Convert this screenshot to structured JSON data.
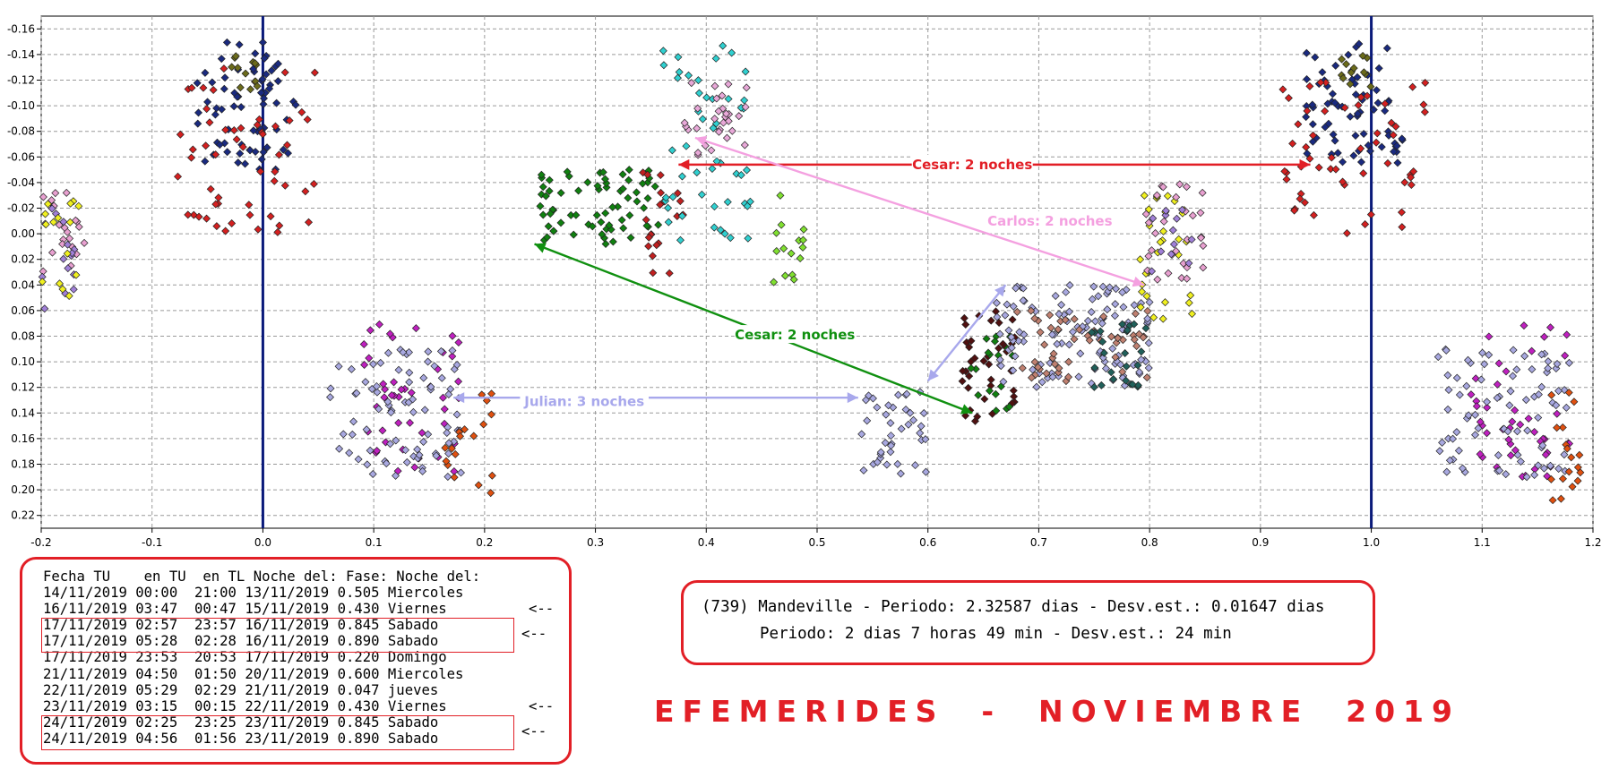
{
  "chart_data": {
    "type": "scatter",
    "xlim": [
      -0.2,
      1.2
    ],
    "ylim": [
      0.23,
      -0.17
    ],
    "y_axis_inverted": true,
    "grid": true,
    "x_ticks": [
      "-0.2",
      "-0.1",
      "0.0",
      "0.1",
      "0.2",
      "0.3",
      "0.4",
      "0.5",
      "0.6",
      "0.7",
      "0.8",
      "0.9",
      "1.0",
      "1.1",
      "1.2"
    ],
    "x_tick_values": [
      -0.2,
      -0.1,
      0.0,
      0.1,
      0.2,
      0.3,
      0.4,
      0.5,
      0.6,
      0.7,
      0.8,
      0.9,
      1.0,
      1.1,
      1.2
    ],
    "y_ticks": [
      "-0.16",
      "-0.14",
      "-0.12",
      "-0.10",
      "-0.08",
      "-0.06",
      "-0.04",
      "-0.02",
      "0.00",
      "0.02",
      "0.04",
      "0.06",
      "0.08",
      "0.10",
      "0.12",
      "0.14",
      "0.16",
      "0.18",
      "0.20",
      "0.22"
    ],
    "y_tick_values": [
      -0.16,
      -0.14,
      -0.12,
      -0.1,
      -0.08,
      -0.06,
      -0.04,
      -0.02,
      0.0,
      0.02,
      0.04,
      0.06,
      0.08,
      0.1,
      0.12,
      0.14,
      0.16,
      0.18,
      0.2,
      0.22
    ],
    "vertical_lines": [
      {
        "x": 0.0,
        "color": "#0a1a7a"
      },
      {
        "x": 1.0,
        "color": "#0a1a7a"
      }
    ],
    "clusters": [
      {
        "color": "#1a2a80",
        "x": [
          -0.06,
          0.03
        ],
        "y": [
          -0.15,
          -0.05
        ],
        "n": 70
      },
      {
        "color": "#d42020",
        "x": [
          -0.08,
          0.05
        ],
        "y": [
          -0.13,
          0.0
        ],
        "n": 55
      },
      {
        "color": "#6b6b1a",
        "x": [
          -0.03,
          0.0
        ],
        "y": [
          -0.14,
          -0.11
        ],
        "n": 12
      },
      {
        "color": "#e8a0d0",
        "x": [
          -0.2,
          -0.16
        ],
        "y": [
          -0.04,
          0.03
        ],
        "n": 20
      },
      {
        "color": "#a080d8",
        "x": [
          -0.2,
          -0.17
        ],
        "y": [
          -0.02,
          0.06
        ],
        "n": 15
      },
      {
        "color": "#f0f020",
        "x": [
          -0.2,
          -0.16
        ],
        "y": [
          -0.03,
          0.05
        ],
        "n": 15
      },
      {
        "color": "#c020c0",
        "x": [
          0.09,
          0.18
        ],
        "y": [
          0.07,
          0.19
        ],
        "n": 45
      },
      {
        "color": "#a8a8e0",
        "x": [
          0.06,
          0.18
        ],
        "y": [
          0.09,
          0.19
        ],
        "n": 80
      },
      {
        "color": "#e05010",
        "x": [
          0.16,
          0.21
        ],
        "y": [
          0.12,
          0.21
        ],
        "n": 18
      },
      {
        "color": "#108010",
        "x": [
          0.25,
          0.36
        ],
        "y": [
          -0.05,
          0.01
        ],
        "n": 70
      },
      {
        "color": "#c02020",
        "x": [
          0.34,
          0.38
        ],
        "y": [
          -0.05,
          0.04
        ],
        "n": 20
      },
      {
        "color": "#30d0d0",
        "x": [
          0.36,
          0.44
        ],
        "y": [
          -0.15,
          0.01
        ],
        "n": 50
      },
      {
        "color": "#e8a8d8",
        "x": [
          0.38,
          0.44
        ],
        "y": [
          -0.12,
          -0.06
        ],
        "n": 30
      },
      {
        "color": "#80e030",
        "x": [
          0.46,
          0.49
        ],
        "y": [
          -0.03,
          0.05
        ],
        "n": 15
      },
      {
        "color": "#a8a8e0",
        "x": [
          0.54,
          0.6
        ],
        "y": [
          0.12,
          0.19
        ],
        "n": 40
      },
      {
        "color": "#501010",
        "x": [
          0.63,
          0.68
        ],
        "y": [
          0.06,
          0.15
        ],
        "n": 40
      },
      {
        "color": "#108010",
        "x": [
          0.63,
          0.68
        ],
        "y": [
          0.08,
          0.14
        ],
        "n": 18
      },
      {
        "color": "#a8a8e0",
        "x": [
          0.66,
          0.8
        ],
        "y": [
          0.04,
          0.12
        ],
        "n": 120
      },
      {
        "color": "#c08070",
        "x": [
          0.68,
          0.8
        ],
        "y": [
          0.06,
          0.12
        ],
        "n": 50
      },
      {
        "color": "#20605a",
        "x": [
          0.74,
          0.8
        ],
        "y": [
          0.07,
          0.12
        ],
        "n": 25
      },
      {
        "color": "#f0f020",
        "x": [
          0.79,
          0.84
        ],
        "y": [
          -0.03,
          0.07
        ],
        "n": 30
      },
      {
        "color": "#e8a0d0",
        "x": [
          0.79,
          0.85
        ],
        "y": [
          -0.04,
          0.04
        ],
        "n": 30
      },
      {
        "color": "#a080d8",
        "x": [
          0.8,
          0.84
        ],
        "y": [
          -0.02,
          0.03
        ],
        "n": 12
      },
      {
        "color": "#1a2a80",
        "x": [
          0.94,
          1.03
        ],
        "y": [
          -0.15,
          -0.05
        ],
        "n": 70
      },
      {
        "color": "#d42020",
        "x": [
          0.92,
          1.05
        ],
        "y": [
          -0.13,
          0.0
        ],
        "n": 55
      },
      {
        "color": "#6b6b1a",
        "x": [
          0.97,
          1.0
        ],
        "y": [
          -0.14,
          -0.11
        ],
        "n": 12
      },
      {
        "color": "#c020c0",
        "x": [
          1.09,
          1.18
        ],
        "y": [
          0.07,
          0.19
        ],
        "n": 45
      },
      {
        "color": "#a8a8e0",
        "x": [
          1.06,
          1.18
        ],
        "y": [
          0.09,
          0.19
        ],
        "n": 80
      },
      {
        "color": "#e05010",
        "x": [
          1.16,
          1.19
        ],
        "y": [
          0.12,
          0.21
        ],
        "n": 18
      }
    ],
    "annotations": [
      {
        "text": "Cesar: 2 noches",
        "color": "#e21f26",
        "x": 0.64,
        "y": -0.054
      },
      {
        "text": "Carlos: 2 noches",
        "color": "#f4a0e0",
        "x": 0.71,
        "y": -0.01
      },
      {
        "text": "Cesar: 2 noches",
        "color": "#109010",
        "x": 0.48,
        "y": 0.079
      },
      {
        "text": "Julian: 3 noches",
        "color": "#a8a8ec",
        "x": 0.29,
        "y": 0.131
      }
    ],
    "arrows": [
      {
        "color": "#e21f26",
        "from": [
          0.375,
          -0.054
        ],
        "to": [
          0.945,
          -0.054
        ],
        "both": true
      },
      {
        "color": "#f4a0e0",
        "from": [
          0.39,
          -0.075
        ],
        "to": [
          0.795,
          0.04
        ],
        "both": true
      },
      {
        "color": "#109010",
        "from": [
          0.245,
          0.008
        ],
        "to": [
          0.64,
          0.14
        ],
        "both": true
      },
      {
        "color": "#a8a8ec",
        "from": [
          0.172,
          0.128
        ],
        "to": [
          0.537,
          0.128
        ],
        "both": true
      },
      {
        "color": "#a8a8ec",
        "from": [
          0.6,
          0.115
        ],
        "to": [
          0.67,
          0.04
        ],
        "both": true
      }
    ]
  },
  "table": {
    "header": "Fecha TU    en TU  en TL Noche del: Fase: Noche del:",
    "rows": [
      "14/11/2019 00:00  21:00 13/11/2019 0.505 Miercoles",
      "16/11/2019 03:47  00:47 15/11/2019 0.430 Viernes",
      "17/11/2019 02:57  23:57 16/11/2019 0.845 Sabado",
      "17/11/2019 05:28  02:28 16/11/2019 0.890 Sabado",
      "17/11/2019 23:53  20:53 17/11/2019 0.220 Domingo",
      "21/11/2019 04:50  01:50 20/11/2019 0.600 Miercoles",
      "22/11/2019 05:29  02:29 21/11/2019 0.047 jueves",
      "23/11/2019 03:15  00:15 22/11/2019 0.430 Viernes",
      "24/11/2019 02:25  23:25 23/11/2019 0.845 Sabado",
      "24/11/2019 04:56  01:56 23/11/2019 0.890 Sabado"
    ],
    "arrow_mark": "<--"
  },
  "period": {
    "line1": "(739) Mandeville - Periodo: 2.32587 dias - Desv.est.: 0.01647 dias",
    "line2": "Periodo: 2 dias 7 horas 49 min - Desv.est.: 24 min"
  },
  "title": "EFEMERIDES  -  NOVIEMBRE  2019"
}
